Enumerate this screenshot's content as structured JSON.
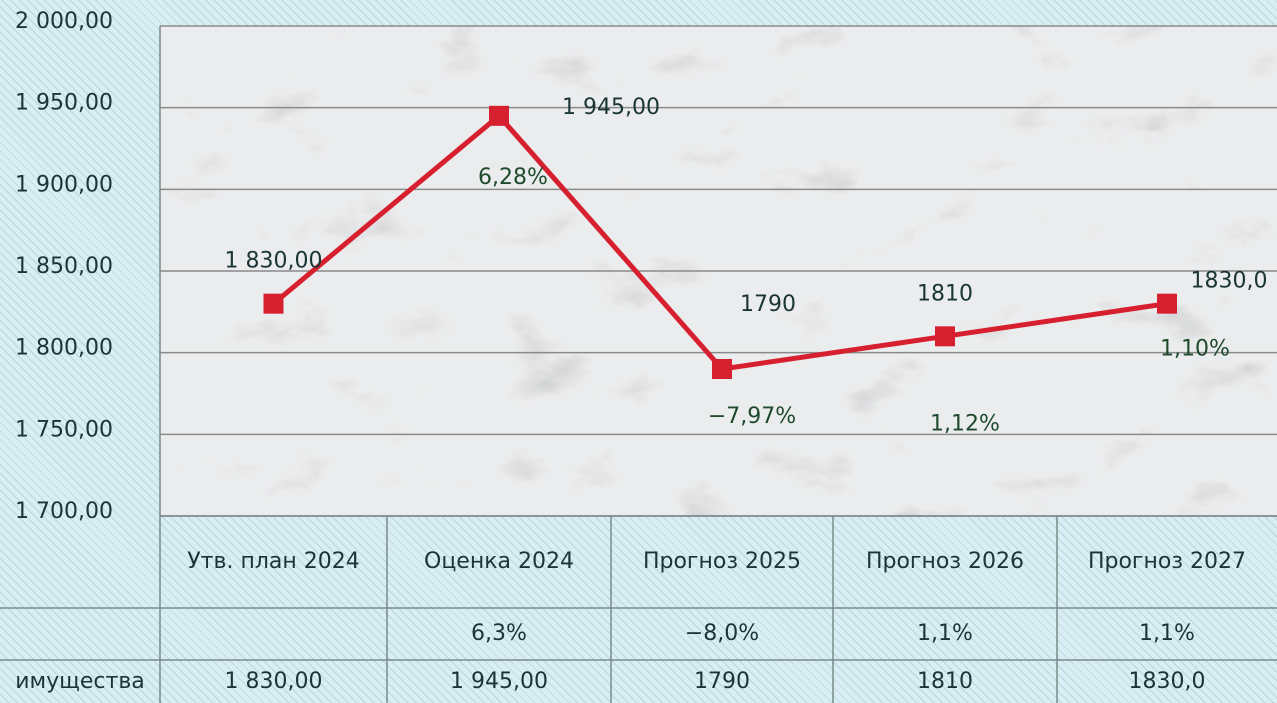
{
  "chart_data": {
    "type": "line",
    "categories": [
      "Утв. план 2024",
      "Оценка 2024",
      "Прогноз 2025",
      "Прогноз 2026",
      "Прогноз 2027"
    ],
    "series": [
      {
        "name": "имущества",
        "color": "#d7202f",
        "values": [
          1830,
          1945,
          1790,
          1810,
          1830
        ],
        "value_labels": [
          "1 830,00",
          "1 945,00",
          "1790",
          "1810",
          "1830,0"
        ]
      }
    ],
    "annotations": [
      null,
      "6,28%",
      "−7,97%",
      "1,12%",
      "1,10%"
    ],
    "change_row": [
      null,
      "6,3%",
      "−8,0%",
      "1,1%",
      "1,1%"
    ],
    "ylim": [
      1700,
      2000
    ],
    "yticks": [
      {
        "value": 1700,
        "label": "1 700,00"
      },
      {
        "value": 1750,
        "label": "1 750,00"
      },
      {
        "value": 1800,
        "label": "1 800,00"
      },
      {
        "value": 1850,
        "label": "1 850,00"
      },
      {
        "value": 1900,
        "label": "1 900,00"
      },
      {
        "value": 1950,
        "label": "1 950,00"
      },
      {
        "value": 2000,
        "label": "2 000,00"
      }
    ],
    "grid": true
  }
}
